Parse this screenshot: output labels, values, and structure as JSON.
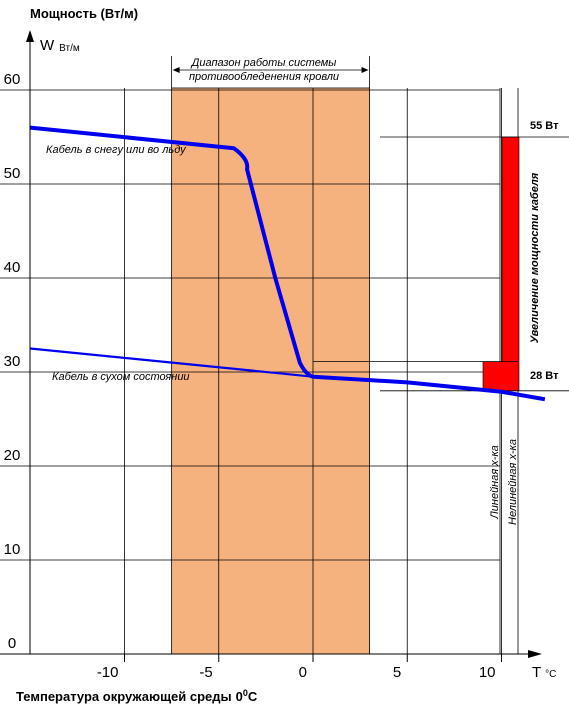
{
  "chart_data": {
    "type": "line",
    "title": "Мощность (Вт/м)",
    "ylabel_main": "W",
    "ylabel_unit": "Вт/м",
    "xlabel": "Температура окружающей среды",
    "xlabel_unit_base": "0",
    "xlabel_unit_sup": "0",
    "xlabel_unit_tail": "С",
    "xaxis_symbol": "T",
    "xaxis_unit": "°С",
    "xlim": [
      -15,
      12.5
    ],
    "ylim": [
      0,
      60
    ],
    "grid": true,
    "x_ticks": [
      -10,
      -5,
      0,
      5,
      10
    ],
    "x_tick_labels": [
      "-10",
      "-5",
      "0",
      "5",
      "10"
    ],
    "y_ticks": [
      0,
      10,
      20,
      30,
      40,
      50,
      60
    ],
    "y_tick_labels": [
      "0",
      "10",
      "20",
      "30",
      "40",
      "50",
      "60"
    ],
    "range_band": {
      "x_from": -7.5,
      "x_to": 3.0,
      "label_line1": "Диапазон работы системы",
      "label_line2": "противообледенения кровли",
      "color": "#f5b27f"
    },
    "series": [
      {
        "name": "Кабель в снегу или во льду",
        "color": "#0000ee",
        "points": [
          [
            -15,
            56
          ],
          [
            -4.2,
            53.8
          ],
          [
            -3.5,
            52
          ],
          [
            -2.0,
            40
          ],
          [
            -0.7,
            31
          ],
          [
            0,
            29.5
          ],
          [
            5,
            28.9
          ],
          [
            10,
            27.9
          ],
          [
            12.3,
            27.1
          ]
        ]
      },
      {
        "name": "Кабель в сухом состоянии",
        "color": "#0000ee",
        "points": [
          [
            -15,
            32.5
          ],
          [
            0,
            29.5
          ]
        ]
      }
    ],
    "increase_bar": {
      "label": "Увеличение мощности кабеля",
      "from": 28,
      "to": 55,
      "color": "#ff0000",
      "top_label": "55 Вт",
      "bottom_label": "28 Вт"
    },
    "vertical_notes": [
      "Линейная х-ка",
      "Нелинейная х-ка"
    ]
  }
}
